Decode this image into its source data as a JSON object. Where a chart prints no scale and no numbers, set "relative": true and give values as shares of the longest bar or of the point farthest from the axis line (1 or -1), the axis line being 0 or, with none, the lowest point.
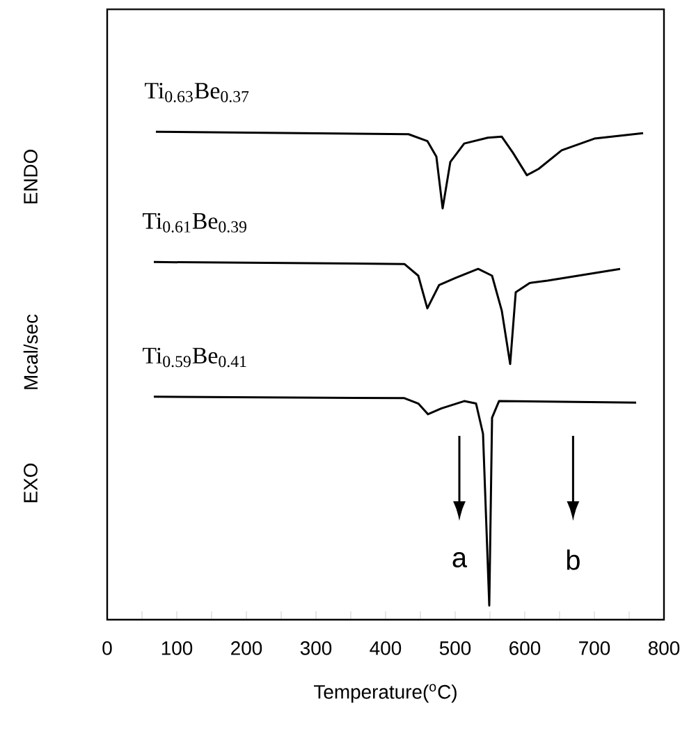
{
  "chart_data": {
    "type": "line",
    "relative": true,
    "xlabel": "Temperature($^{o}$C)",
    "ylabel": "Mcal/sec",
    "xlim": [
      0,
      800
    ],
    "xticks": [
      0,
      {
        "value": 50,
        "label": null
      },
      100,
      {
        "value": 150,
        "label": null
      },
      200,
      {
        "value": 250,
        "label": null
      },
      300,
      {
        "value": 350,
        "label": null
      },
      400,
      {
        "value": 450,
        "label": null
      },
      500,
      {
        "value": 550,
        "label": null
      },
      600,
      {
        "value": 650,
        "label": null
      },
      700,
      {
        "value": 750,
        "label": null
      },
      800
    ],
    "marker": "none",
    "line_style": "solid",
    "series": [
      {
        "name": "Ti$_{0.63}$Be$_{0.37}$",
        "color": "#000000",
        "x": [
          70,
          433,
          460,
          473,
          482,
          493,
          513,
          547,
          567,
          583,
          603,
          620,
          653,
          700,
          770
        ],
        "values": [
          1.0,
          0.995,
          0.981,
          0.949,
          0.843,
          0.938,
          0.976,
          0.988,
          0.99,
          0.957,
          0.911,
          0.924,
          0.962,
          0.986,
          0.997
        ]
      },
      {
        "name": "Ti$_{0.61}$Be$_{0.39}$",
        "color": "#000000",
        "x": [
          67,
          427,
          447,
          460,
          477,
          500,
          533,
          553,
          567,
          579,
          587,
          607,
          633,
          737
        ],
        "values": [
          0.733,
          0.729,
          0.705,
          0.638,
          0.686,
          0.7,
          0.719,
          0.705,
          0.633,
          0.524,
          0.671,
          0.69,
          0.695,
          0.719
        ]
      },
      {
        "name": "Ti$_{0.59}$Be$_{0.41}$",
        "color": "#000000",
        "x": [
          67,
          427,
          447,
          461,
          480,
          513,
          530,
          540,
          549,
          553,
          563,
          760
        ],
        "values": [
          0.457,
          0.454,
          0.443,
          0.421,
          0.433,
          0.448,
          0.443,
          0.381,
          0.029,
          0.414,
          0.448,
          0.445
        ]
      }
    ],
    "annotations": [
      "EXO",
      "ENDO",
      "a",
      "b"
    ]
  }
}
